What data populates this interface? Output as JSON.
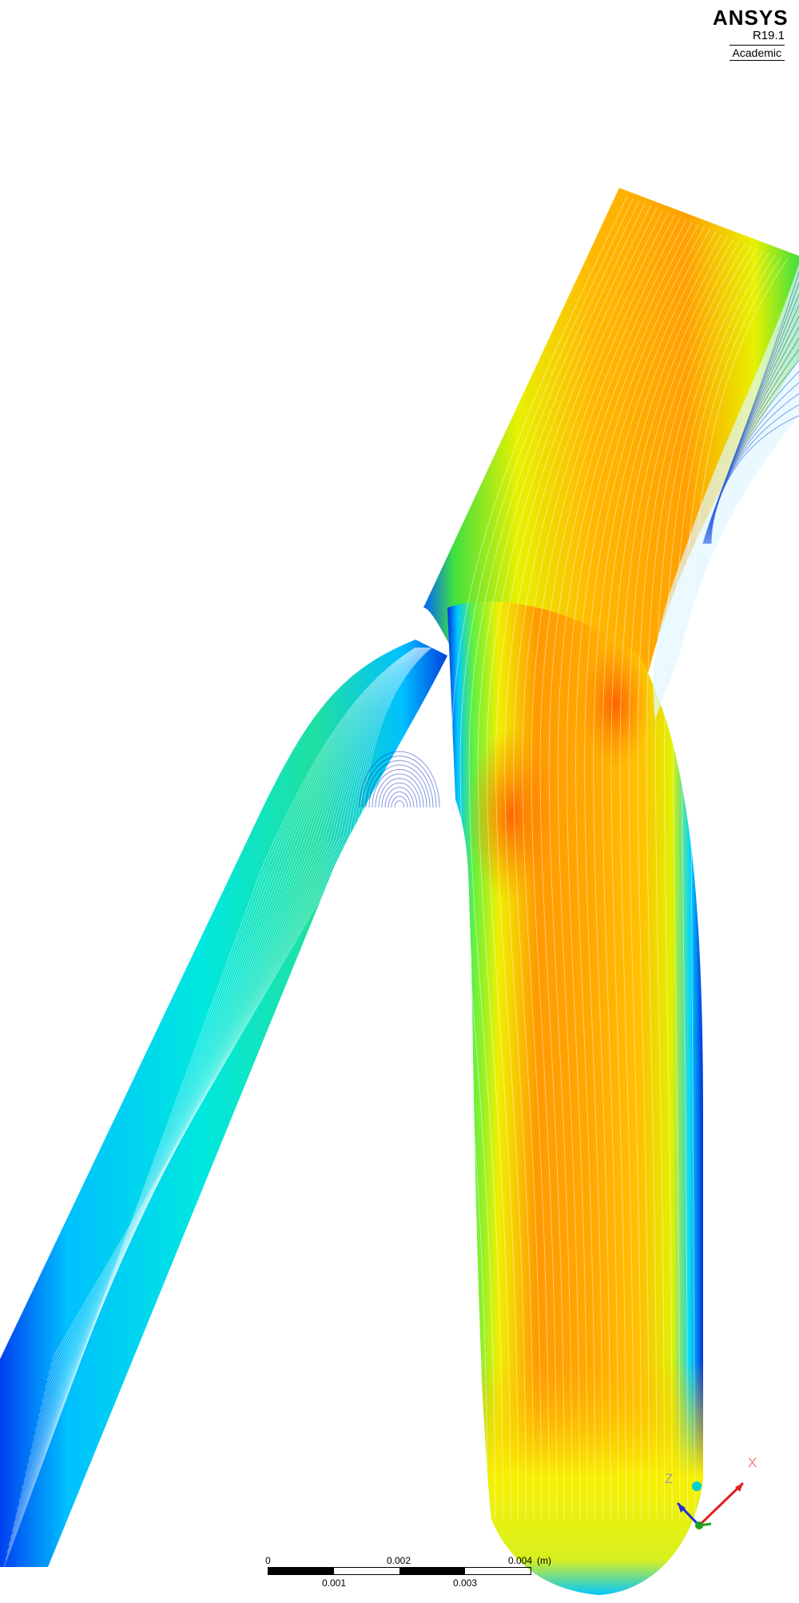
{
  "branding": {
    "name": "ANSYS",
    "version": "R19.1",
    "edition": "Academic"
  },
  "scale_bar": {
    "top_labels": [
      "0",
      "0.002",
      "0.004"
    ],
    "bottom_labels": [
      "0.001",
      "0.003"
    ],
    "unit": "(m)"
  },
  "triad": {
    "x_label": "X",
    "z_label": "Z",
    "colors": {
      "x": "#e02020",
      "y": "#20a020",
      "z": "#2030d0",
      "center": "#00d0d0"
    }
  },
  "colormap": [
    "#0000c8",
    "#0050ff",
    "#00c8ff",
    "#00e6a0",
    "#40e040",
    "#c8f000",
    "#ffff00",
    "#ffc800",
    "#ff9000",
    "#ff5a00"
  ]
}
